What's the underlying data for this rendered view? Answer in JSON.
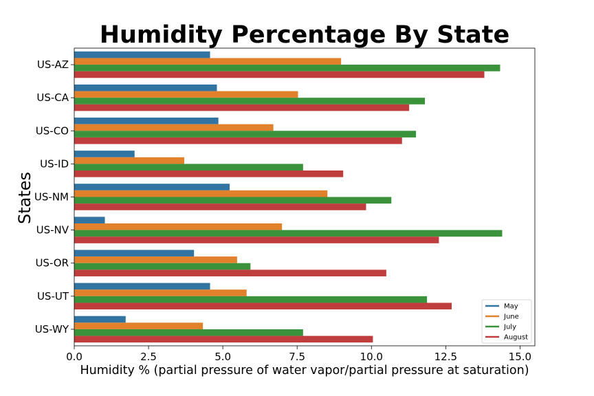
{
  "chart_data": {
    "type": "bar",
    "orientation": "horizontal",
    "title": "Humidity Percentage By State",
    "xlabel": "Humidity % (partial pressure of water vapor/partial pressure at saturation)",
    "ylabel": "States",
    "xlim": [
      0,
      15.5
    ],
    "xticks": [
      "0.0",
      "2.5",
      "5.0",
      "7.5",
      "10.0",
      "12.5",
      "15.0"
    ],
    "xtick_values": [
      0,
      2.5,
      5,
      7.5,
      10,
      12.5,
      15
    ],
    "categories": [
      "US-AZ",
      "US-CA",
      "US-CO",
      "US-ID",
      "US-NM",
      "US-NV",
      "US-OR",
      "US-UT",
      "US-WY"
    ],
    "series": [
      {
        "name": "May",
        "color": "#3274a1",
        "values": [
          4.57,
          4.8,
          4.85,
          2.03,
          5.23,
          1.03,
          4.03,
          4.57,
          1.73
        ]
      },
      {
        "name": "June",
        "color": "#e1812c",
        "values": [
          8.98,
          7.53,
          6.7,
          3.7,
          8.52,
          6.99,
          5.48,
          5.8,
          4.33
        ]
      },
      {
        "name": "July",
        "color": "#3a923a",
        "values": [
          14.33,
          11.8,
          11.5,
          7.7,
          10.67,
          14.4,
          5.93,
          11.87,
          7.7
        ]
      },
      {
        "name": "August",
        "color": "#c03d3e",
        "values": [
          13.8,
          11.27,
          11.03,
          9.05,
          9.82,
          12.27,
          10.5,
          12.7,
          10.05
        ]
      }
    ],
    "grid": false,
    "legend_position": "lower-right"
  }
}
